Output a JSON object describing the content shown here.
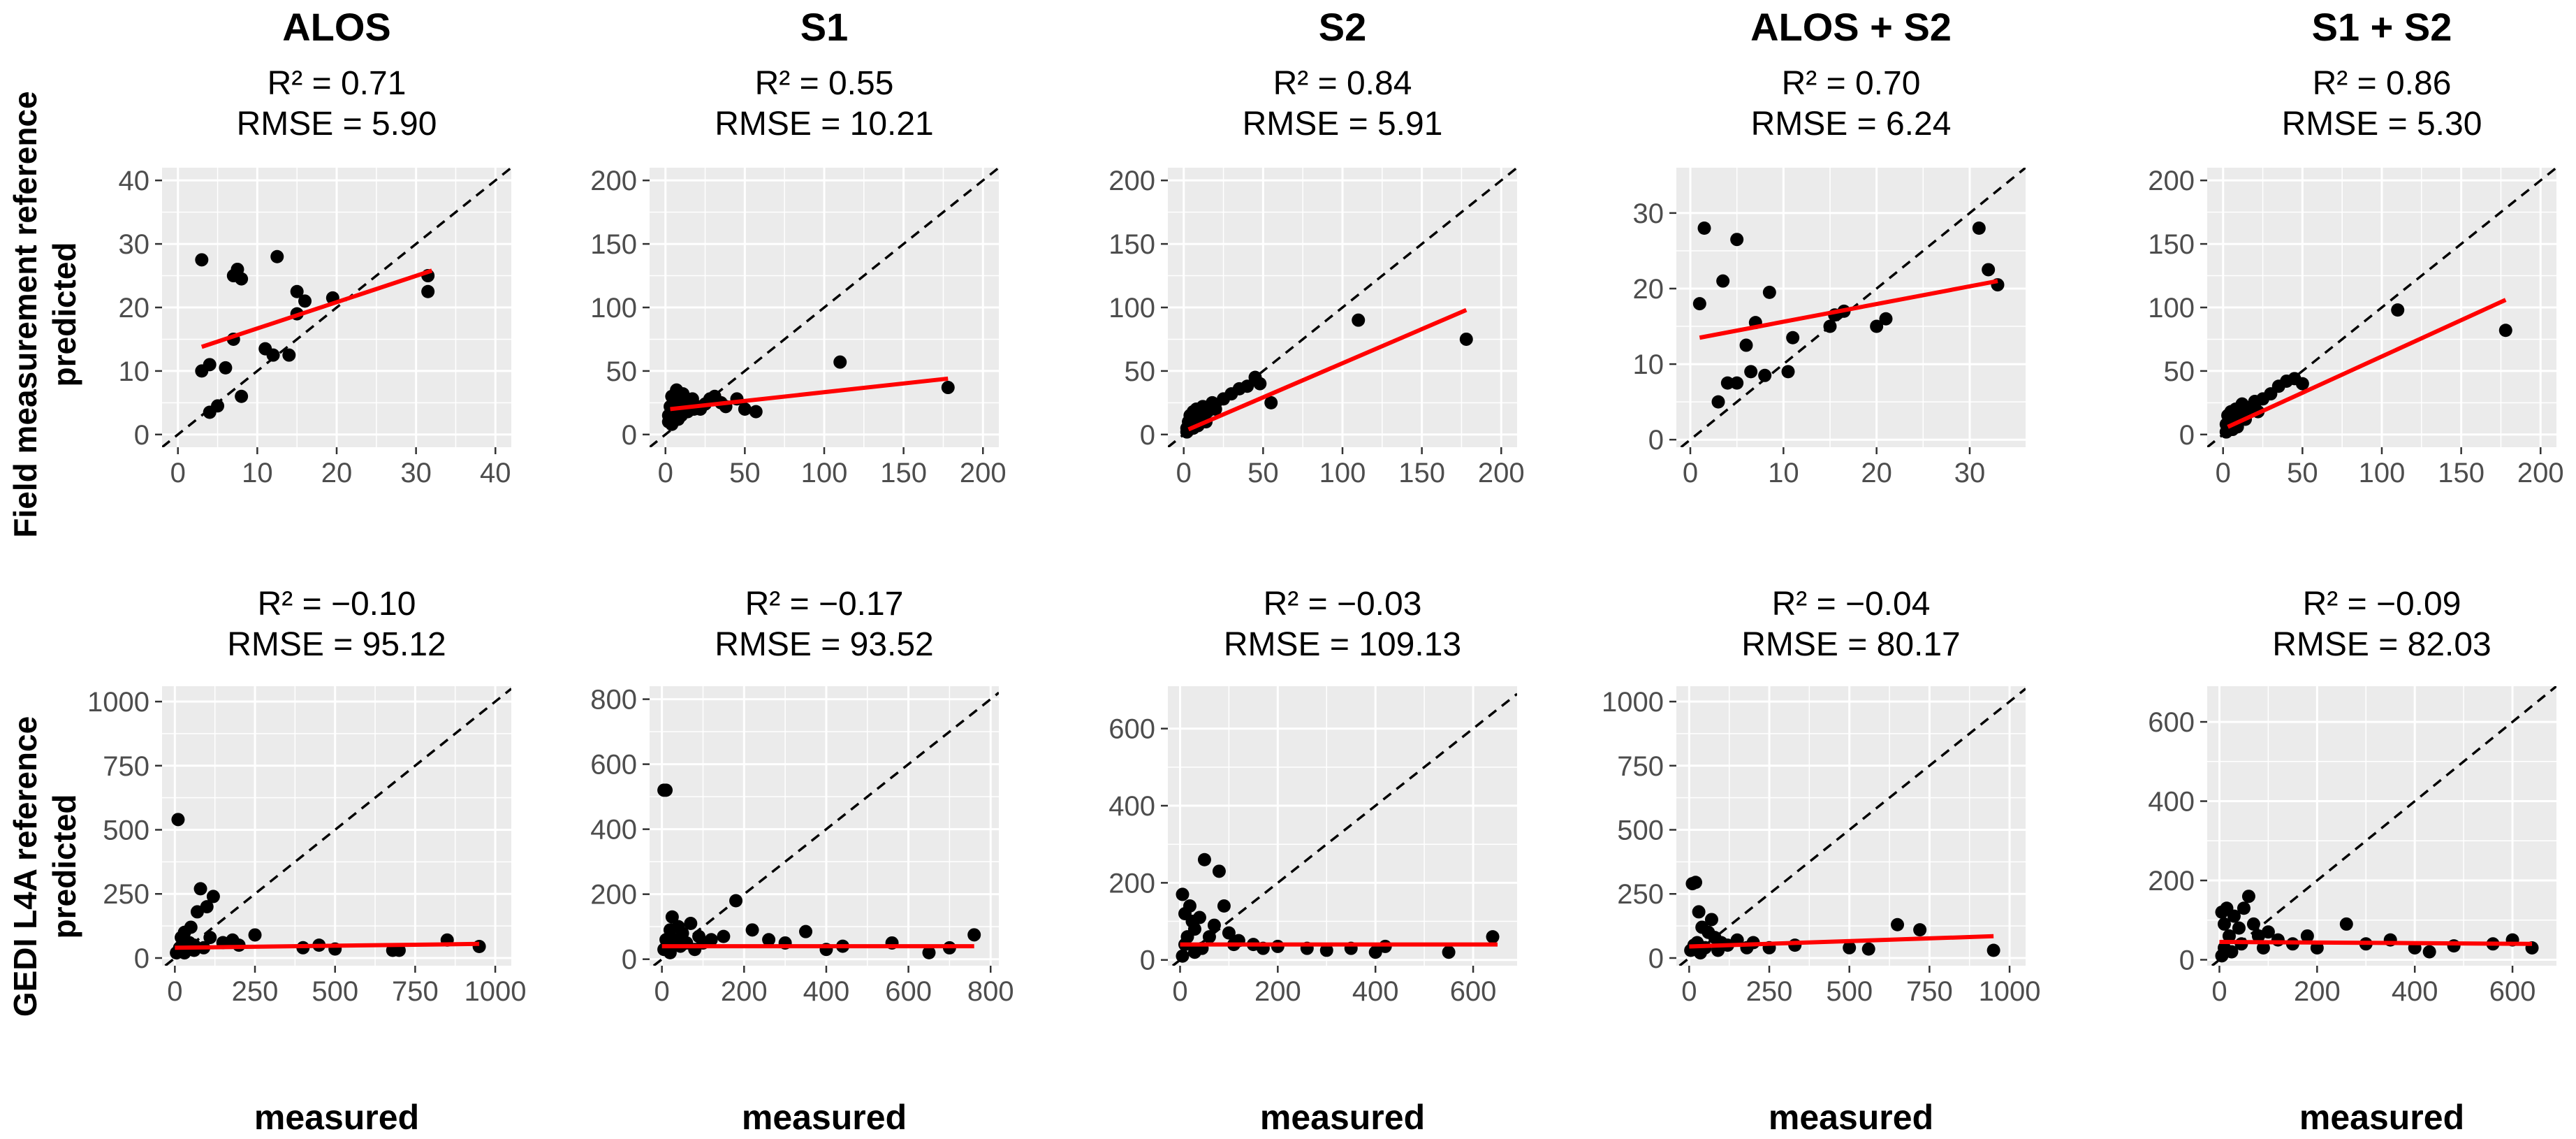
{
  "columns": [
    "ALOS",
    "S1",
    "S2",
    "ALOS + S2",
    "S1 + S2"
  ],
  "rows": [
    {
      "label_line1": "Field measurement reference",
      "label_line2": "predicted"
    },
    {
      "label_line1": "GEDI L4A reference",
      "label_line2": "predicted"
    }
  ],
  "x_axis_label": "measured",
  "colors": {
    "panel": "#ebebeb",
    "grid_major": "#ffffff",
    "points": "#000000",
    "fit_line": "#ff0000",
    "identity_line": "#000000",
    "tick_text": "#4d4d4d"
  },
  "chart_data": [
    {
      "type": "scatter",
      "row": 0,
      "col": 0,
      "title": "ALOS",
      "r2": "R² = 0.71",
      "rmse": "RMSE = 5.90",
      "xlim": [
        -2,
        42
      ],
      "ylim": [
        -2,
        42
      ],
      "xticks": [
        0,
        10,
        20,
        30,
        40
      ],
      "yticks": [
        0,
        10,
        20,
        30,
        40
      ],
      "points": [
        [
          3,
          27.5
        ],
        [
          3,
          10
        ],
        [
          4,
          11
        ],
        [
          5,
          4.5
        ],
        [
          6,
          10.5
        ],
        [
          7,
          15
        ],
        [
          7,
          25
        ],
        [
          7.5,
          26
        ],
        [
          8,
          24.5
        ],
        [
          8,
          6
        ],
        [
          11,
          13.5
        ],
        [
          12,
          12.5
        ],
        [
          12.5,
          28
        ],
        [
          14,
          12.5
        ],
        [
          15,
          19
        ],
        [
          15,
          22.5
        ],
        [
          16,
          21
        ],
        [
          19.5,
          21.5
        ],
        [
          31.5,
          25
        ],
        [
          31.5,
          22.5
        ],
        [
          4,
          3.5
        ]
      ],
      "fit": [
        [
          3,
          13.8
        ],
        [
          32,
          25.8
        ]
      ]
    },
    {
      "type": "scatter",
      "row": 0,
      "col": 1,
      "title": "S1",
      "r2": "R² = 0.55",
      "rmse": "RMSE = 10.21",
      "xlim": [
        -10,
        210
      ],
      "ylim": [
        -10,
        210
      ],
      "xticks": [
        0,
        50,
        100,
        150,
        200
      ],
      "yticks": [
        0,
        50,
        100,
        150,
        200
      ],
      "points": [
        [
          2,
          15
        ],
        [
          3,
          22
        ],
        [
          4,
          30
        ],
        [
          5,
          18
        ],
        [
          6,
          25
        ],
        [
          6,
          12
        ],
        [
          7,
          35
        ],
        [
          8,
          28
        ],
        [
          9,
          20
        ],
        [
          10,
          15
        ],
        [
          11,
          32
        ],
        [
          12,
          22
        ],
        [
          14,
          18
        ],
        [
          15,
          26
        ],
        [
          17,
          28
        ],
        [
          20,
          22
        ],
        [
          22,
          20
        ],
        [
          25,
          24
        ],
        [
          28,
          28
        ],
        [
          31,
          30
        ],
        [
          35,
          25
        ],
        [
          38,
          22
        ],
        [
          45,
          28
        ],
        [
          50,
          20
        ],
        [
          57,
          18
        ],
        [
          110,
          57
        ],
        [
          178,
          37
        ],
        [
          2,
          10
        ],
        [
          4,
          8
        ],
        [
          8,
          12
        ],
        [
          12,
          28
        ],
        [
          18,
          20
        ]
      ],
      "fit": [
        [
          3,
          20
        ],
        [
          178,
          44
        ]
      ]
    },
    {
      "type": "scatter",
      "row": 0,
      "col": 2,
      "title": "S2",
      "r2": "R² = 0.84",
      "rmse": "RMSE = 5.91",
      "xlim": [
        -10,
        210
      ],
      "ylim": [
        -10,
        210
      ],
      "xticks": [
        0,
        50,
        100,
        150,
        200
      ],
      "yticks": [
        0,
        50,
        100,
        150,
        200
      ],
      "points": [
        [
          2,
          5
        ],
        [
          3,
          10
        ],
        [
          4,
          15
        ],
        [
          5,
          8
        ],
        [
          6,
          18
        ],
        [
          7,
          12
        ],
        [
          8,
          20
        ],
        [
          9,
          7
        ],
        [
          10,
          15
        ],
        [
          12,
          22
        ],
        [
          15,
          18
        ],
        [
          18,
          25
        ],
        [
          20,
          20
        ],
        [
          25,
          28
        ],
        [
          30,
          32
        ],
        [
          35,
          36
        ],
        [
          40,
          38
        ],
        [
          45,
          45
        ],
        [
          48,
          40
        ],
        [
          55,
          25
        ],
        [
          110,
          90
        ],
        [
          178,
          75
        ],
        [
          2,
          2
        ],
        [
          6,
          5
        ],
        [
          14,
          10
        ]
      ],
      "fit": [
        [
          3,
          4
        ],
        [
          178,
          98
        ]
      ]
    },
    {
      "type": "scatter",
      "row": 0,
      "col": 3,
      "title": "ALOS + S2",
      "r2": "R² = 0.70",
      "rmse": "RMSE = 6.24",
      "xlim": [
        -1.5,
        36
      ],
      "ylim": [
        -1,
        36
      ],
      "xticks": [
        0,
        10,
        20,
        30
      ],
      "yticks": [
        0,
        10,
        20,
        30
      ],
      "points": [
        [
          1,
          18
        ],
        [
          1.5,
          28
        ],
        [
          3,
          5
        ],
        [
          3.5,
          21
        ],
        [
          4,
          7.5
        ],
        [
          5,
          26.5
        ],
        [
          5,
          7.5
        ],
        [
          6,
          12.5
        ],
        [
          6.5,
          9
        ],
        [
          7,
          15.5
        ],
        [
          8,
          8.5
        ],
        [
          8.5,
          19.5
        ],
        [
          10.5,
          9
        ],
        [
          11,
          13.5
        ],
        [
          15,
          15
        ],
        [
          15.5,
          16.5
        ],
        [
          16.5,
          17
        ],
        [
          20,
          15
        ],
        [
          21,
          16
        ],
        [
          31,
          28
        ],
        [
          32,
          22.5
        ],
        [
          33,
          20.5
        ]
      ],
      "fit": [
        [
          1,
          13.5
        ],
        [
          33,
          21
        ]
      ]
    },
    {
      "type": "scatter",
      "row": 0,
      "col": 4,
      "title": "S1 + S2",
      "r2": "R² = 0.86",
      "rmse": "RMSE = 5.30",
      "xlim": [
        -10,
        210
      ],
      "ylim": [
        -10,
        210
      ],
      "xticks": [
        0,
        50,
        100,
        150,
        200
      ],
      "yticks": [
        0,
        50,
        100,
        150,
        200
      ],
      "points": [
        [
          2,
          8
        ],
        [
          3,
          15
        ],
        [
          4,
          10
        ],
        [
          5,
          18
        ],
        [
          6,
          12
        ],
        [
          8,
          20
        ],
        [
          9,
          6
        ],
        [
          10,
          16
        ],
        [
          12,
          24
        ],
        [
          15,
          20
        ],
        [
          18,
          22
        ],
        [
          20,
          26
        ],
        [
          25,
          28
        ],
        [
          30,
          32
        ],
        [
          35,
          38
        ],
        [
          40,
          42
        ],
        [
          45,
          44
        ],
        [
          50,
          40
        ],
        [
          110,
          98
        ],
        [
          178,
          82
        ],
        [
          2,
          2
        ],
        [
          6,
          4
        ],
        [
          14,
          12
        ],
        [
          22,
          18
        ]
      ],
      "fit": [
        [
          3,
          6
        ],
        [
          178,
          106
        ]
      ]
    },
    {
      "type": "scatter",
      "row": 1,
      "col": 0,
      "title": "ALOS",
      "r2": "R² = −0.10",
      "rmse": "RMSE = 95.12",
      "xlim": [
        -40,
        1050
      ],
      "ylim": [
        -30,
        1060
      ],
      "xticks": [
        0,
        250,
        500,
        750,
        1000
      ],
      "yticks": [
        0,
        250,
        500,
        750,
        1000
      ],
      "points": [
        [
          10,
          540
        ],
        [
          20,
          80
        ],
        [
          25,
          60
        ],
        [
          30,
          100
        ],
        [
          40,
          40
        ],
        [
          50,
          120
        ],
        [
          60,
          30
        ],
        [
          70,
          180
        ],
        [
          80,
          270
        ],
        [
          100,
          200
        ],
        [
          120,
          240
        ],
        [
          150,
          60
        ],
        [
          180,
          70
        ],
        [
          250,
          90
        ],
        [
          400,
          40
        ],
        [
          450,
          50
        ],
        [
          500,
          35
        ],
        [
          680,
          30
        ],
        [
          700,
          30
        ],
        [
          850,
          70
        ],
        [
          950,
          45
        ],
        [
          5,
          20
        ],
        [
          15,
          40
        ],
        [
          30,
          20
        ],
        [
          45,
          60
        ],
        [
          60,
          50
        ],
        [
          90,
          40
        ],
        [
          110,
          80
        ],
        [
          200,
          50
        ]
      ],
      "fit": [
        [
          0,
          40
        ],
        [
          950,
          55
        ]
      ]
    },
    {
      "type": "scatter",
      "row": 1,
      "col": 1,
      "title": "S1",
      "r2": "R² = −0.17",
      "rmse": "RMSE = 93.52",
      "xlim": [
        -30,
        820
      ],
      "ylim": [
        -20,
        840
      ],
      "xticks": [
        0,
        200,
        400,
        600,
        800
      ],
      "yticks": [
        0,
        200,
        400,
        600,
        800
      ],
      "points": [
        [
          5,
          520
        ],
        [
          10,
          520
        ],
        [
          15,
          40
        ],
        [
          20,
          90
        ],
        [
          25,
          130
        ],
        [
          30,
          60
        ],
        [
          40,
          100
        ],
        [
          50,
          80
        ],
        [
          60,
          50
        ],
        [
          70,
          110
        ],
        [
          90,
          70
        ],
        [
          120,
          60
        ],
        [
          150,
          70
        ],
        [
          180,
          180
        ],
        [
          220,
          90
        ],
        [
          260,
          60
        ],
        [
          300,
          50
        ],
        [
          350,
          85
        ],
        [
          400,
          30
        ],
        [
          440,
          40
        ],
        [
          560,
          50
        ],
        [
          650,
          20
        ],
        [
          700,
          35
        ],
        [
          760,
          75
        ],
        [
          5,
          30
        ],
        [
          10,
          60
        ],
        [
          20,
          20
        ],
        [
          45,
          40
        ],
        [
          80,
          30
        ],
        [
          100,
          50
        ]
      ],
      "fit": [
        [
          0,
          40
        ],
        [
          760,
          40
        ]
      ]
    },
    {
      "type": "scatter",
      "row": 1,
      "col": 2,
      "title": "S2",
      "r2": "R² = −0.03",
      "rmse": "RMSE = 109.13",
      "xlim": [
        -25,
        690
      ],
      "ylim": [
        -15,
        710
      ],
      "xticks": [
        0,
        200,
        400,
        600
      ],
      "yticks": [
        0,
        200,
        400,
        600
      ],
      "points": [
        [
          5,
          170
        ],
        [
          10,
          120
        ],
        [
          15,
          60
        ],
        [
          20,
          140
        ],
        [
          25,
          100
        ],
        [
          30,
          80
        ],
        [
          40,
          110
        ],
        [
          50,
          260
        ],
        [
          60,
          60
        ],
        [
          70,
          90
        ],
        [
          80,
          230
        ],
        [
          90,
          140
        ],
        [
          100,
          70
        ],
        [
          120,
          50
        ],
        [
          150,
          40
        ],
        [
          170,
          30
        ],
        [
          200,
          35
        ],
        [
          260,
          30
        ],
        [
          300,
          25
        ],
        [
          350,
          30
        ],
        [
          400,
          20
        ],
        [
          420,
          35
        ],
        [
          550,
          20
        ],
        [
          640,
          60
        ],
        [
          10,
          40
        ],
        [
          30,
          20
        ],
        [
          45,
          30
        ],
        [
          110,
          40
        ],
        [
          5,
          10
        ]
      ],
      "fit": [
        [
          0,
          40
        ],
        [
          650,
          40
        ]
      ]
    },
    {
      "type": "scatter",
      "row": 1,
      "col": 3,
      "title": "ALOS + S2",
      "r2": "R² = −0.04",
      "rmse": "RMSE = 80.17",
      "xlim": [
        -40,
        1050
      ],
      "ylim": [
        -30,
        1060
      ],
      "xticks": [
        0,
        250,
        500,
        750,
        1000
      ],
      "yticks": [
        0,
        250,
        500,
        750,
        1000
      ],
      "points": [
        [
          10,
          290
        ],
        [
          20,
          295
        ],
        [
          25,
          60
        ],
        [
          30,
          180
        ],
        [
          40,
          120
        ],
        [
          50,
          40
        ],
        [
          60,
          100
        ],
        [
          70,
          150
        ],
        [
          80,
          80
        ],
        [
          100,
          60
        ],
        [
          120,
          50
        ],
        [
          150,
          70
        ],
        [
          200,
          60
        ],
        [
          250,
          40
        ],
        [
          330,
          50
        ],
        [
          500,
          40
        ],
        [
          560,
          35
        ],
        [
          650,
          130
        ],
        [
          720,
          110
        ],
        [
          950,
          30
        ],
        [
          5,
          30
        ],
        [
          15,
          50
        ],
        [
          35,
          20
        ],
        [
          90,
          30
        ],
        [
          180,
          40
        ]
      ],
      "fit": [
        [
          0,
          45
        ],
        [
          950,
          85
        ]
      ]
    },
    {
      "type": "scatter",
      "row": 1,
      "col": 4,
      "title": "S1 + S2",
      "r2": "R² = −0.09",
      "rmse": "RMSE = 82.03",
      "xlim": [
        -25,
        690
      ],
      "ylim": [
        -15,
        690
      ],
      "xticks": [
        0,
        200,
        400,
        600
      ],
      "yticks": [
        0,
        200,
        400,
        600
      ],
      "points": [
        [
          5,
          120
        ],
        [
          10,
          90
        ],
        [
          15,
          130
        ],
        [
          20,
          60
        ],
        [
          30,
          110
        ],
        [
          40,
          80
        ],
        [
          50,
          130
        ],
        [
          60,
          160
        ],
        [
          70,
          90
        ],
        [
          80,
          60
        ],
        [
          100,
          70
        ],
        [
          120,
          50
        ],
        [
          150,
          40
        ],
        [
          180,
          60
        ],
        [
          200,
          30
        ],
        [
          260,
          90
        ],
        [
          300,
          40
        ],
        [
          350,
          50
        ],
        [
          400,
          30
        ],
        [
          430,
          20
        ],
        [
          480,
          35
        ],
        [
          560,
          40
        ],
        [
          600,
          50
        ],
        [
          640,
          30
        ],
        [
          10,
          30
        ],
        [
          25,
          20
        ],
        [
          45,
          40
        ],
        [
          90,
          30
        ],
        [
          5,
          10
        ]
      ],
      "fit": [
        [
          0,
          45
        ],
        [
          640,
          40
        ]
      ]
    }
  ]
}
